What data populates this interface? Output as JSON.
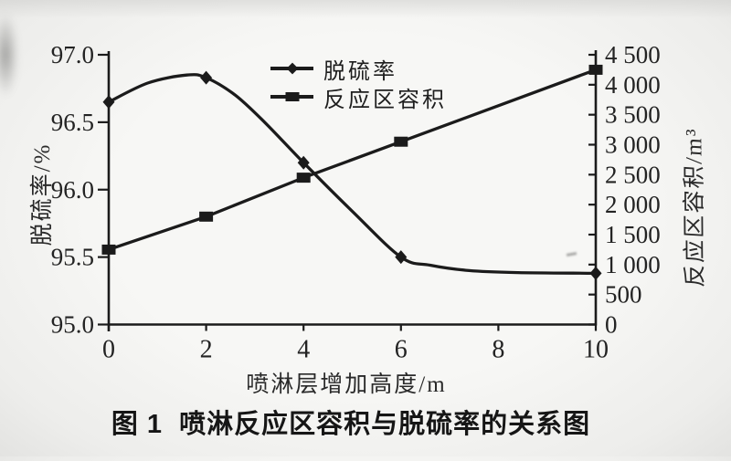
{
  "figure": {
    "caption": "图 1  喷淋反应区容积与脱硫率的关系图"
  },
  "chart_data": {
    "type": "line",
    "title": "图 1  喷淋反应区容积与脱硫率的关系图",
    "xlabel": "喷淋层增加高度/m",
    "x_range": [
      0,
      10
    ],
    "x_tick_values": [
      0,
      2,
      4,
      6,
      8,
      10
    ],
    "x_tick_labels": [
      "0",
      "2",
      "4",
      "6",
      "8",
      "10"
    ],
    "grid": false,
    "axes": {
      "left": {
        "label": "脱硫率/%",
        "range": [
          95.0,
          97.0
        ],
        "tick_values": [
          97.0,
          96.5,
          96.0,
          95.5,
          95.0
        ],
        "tick_labels": [
          "97.0",
          "96.5",
          "96.0",
          "95.5",
          "95.0"
        ]
      },
      "right": {
        "label": "反应区容积/m³",
        "range": [
          0,
          4500
        ],
        "tick_values": [
          4500,
          4000,
          3500,
          3000,
          2500,
          2000,
          1500,
          1000,
          500,
          0
        ],
        "tick_labels": [
          "4 500",
          "4 000",
          "3 500",
          "3 000",
          "2 500",
          "2 000",
          "1 500",
          "1 000",
          "500",
          "0"
        ]
      }
    },
    "legend": {
      "position": "inside-top-center",
      "items": [
        {
          "label": "脱硫率",
          "marker": "diamond"
        },
        {
          "label": "反应区容积",
          "marker": "square"
        }
      ]
    },
    "series": [
      {
        "name": "脱硫率",
        "axis": "left",
        "marker": "diamond",
        "color": "#1b1b1b",
        "x": [
          0,
          2,
          4,
          6,
          10
        ],
        "values": [
          96.65,
          96.83,
          96.2,
          95.5,
          95.38
        ],
        "curve_x": [
          0,
          0.8,
          1.6,
          2,
          2.6,
          3.2,
          4,
          5,
          6,
          6.6,
          7.4,
          8.4,
          10
        ],
        "curve_y": [
          96.65,
          96.79,
          96.85,
          96.83,
          96.7,
          96.5,
          96.2,
          95.84,
          95.5,
          95.44,
          95.4,
          95.385,
          95.38
        ]
      },
      {
        "name": "反应区容积",
        "axis": "right",
        "marker": "square",
        "color": "#1b1b1b",
        "x": [
          0,
          2,
          4,
          6,
          10
        ],
        "values": [
          1250,
          1800,
          2450,
          3050,
          4250
        ]
      }
    ]
  }
}
